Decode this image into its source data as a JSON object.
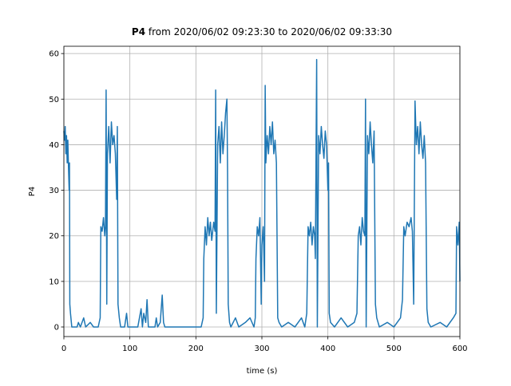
{
  "chart_data": {
    "type": "line",
    "title": {
      "bold": "P4",
      "text": "from 2020/06/02 09:23:30 to 2020/06/02 09:33:30"
    },
    "xlabel": "time (s)",
    "ylabel": "P4",
    "xlim": [
      0,
      600
    ],
    "ylim": [
      -2.1,
      61.6
    ],
    "xticks": [
      0,
      100,
      200,
      300,
      400,
      500,
      600
    ],
    "yticks": [
      0,
      10,
      20,
      30,
      40,
      50,
      60
    ],
    "grid": true,
    "x": [
      0,
      1,
      2,
      3,
      4,
      5,
      6,
      7,
      8,
      8.5,
      9,
      10,
      12,
      20,
      22,
      25,
      30,
      33,
      40,
      45,
      52,
      55,
      56,
      58,
      60,
      62,
      63,
      64,
      65,
      66,
      68,
      70,
      72,
      74,
      76,
      78,
      80,
      81,
      82,
      84,
      86,
      92,
      95,
      97,
      112,
      117,
      119,
      121,
      124,
      126,
      128,
      138,
      140,
      142,
      146,
      149,
      151,
      153,
      208,
      211,
      212,
      214,
      216,
      218,
      220,
      222,
      224,
      227,
      229,
      230,
      231,
      233,
      235,
      237,
      239,
      241,
      243,
      245,
      247,
      248,
      249,
      251,
      253,
      260,
      265,
      275,
      282,
      288,
      290,
      291,
      293,
      295,
      297,
      299,
      300,
      302,
      304,
      305,
      306,
      308,
      310,
      312,
      314,
      316,
      318,
      320,
      322,
      324,
      326,
      330,
      340,
      350,
      360,
      365,
      368,
      370,
      372,
      374,
      376,
      378,
      380,
      381,
      383,
      384,
      386,
      388,
      390,
      392,
      394,
      396,
      398,
      400,
      401,
      402,
      404,
      410,
      420,
      430,
      440,
      444,
      446,
      448,
      450,
      452,
      454,
      456,
      457,
      458,
      460,
      462,
      464,
      466,
      468,
      470,
      472,
      474,
      478,
      490,
      500,
      510,
      513,
      515,
      517,
      520,
      523,
      526,
      528,
      530,
      532,
      534,
      536,
      538,
      540,
      542,
      544,
      546,
      548,
      550,
      552,
      556,
      570,
      580,
      590,
      594,
      595,
      597,
      599,
      600
    ],
    "series": [
      {
        "name": "P4",
        "color": "#1f77b4",
        "values": [
          43,
          41,
          44,
          38,
          42,
          36,
          41,
          35,
          30,
          36,
          5,
          3,
          0,
          0,
          1,
          0,
          2,
          0,
          1,
          0,
          0,
          2,
          22,
          21,
          24,
          20,
          22,
          52,
          5,
          38,
          44,
          36,
          45,
          40,
          42,
          38,
          28,
          44,
          5,
          2,
          0,
          0,
          3,
          0,
          0,
          4,
          0,
          3,
          1,
          6,
          0,
          0,
          2,
          0,
          1,
          7,
          1,
          0,
          0,
          2,
          15,
          22,
          18,
          24,
          20,
          23,
          19,
          23,
          21,
          52,
          3,
          40,
          44,
          36,
          45,
          38,
          42,
          47,
          50,
          34,
          5,
          1,
          0,
          2,
          0,
          1,
          2,
          0,
          2,
          15,
          22,
          20,
          24,
          5,
          18,
          22,
          10,
          53,
          36,
          42,
          38,
          44,
          40,
          45,
          38,
          41,
          36,
          2,
          1,
          0,
          1,
          0,
          2,
          0,
          3,
          22,
          20,
          23,
          18,
          22,
          20,
          15,
          58.7,
          0,
          42,
          38,
          44,
          40,
          37,
          43,
          40,
          30,
          36,
          3,
          1,
          0,
          2,
          0,
          1,
          3,
          20,
          22,
          18,
          24,
          21,
          20,
          50,
          0,
          42,
          38,
          45,
          40,
          36,
          43,
          5,
          2,
          0,
          1,
          0,
          2,
          6,
          22,
          20,
          23,
          22,
          24,
          21,
          5,
          49.6,
          40,
          44,
          38,
          45,
          40,
          37,
          42,
          36,
          4,
          1,
          0,
          1,
          0,
          2,
          3,
          22,
          18,
          23,
          10
        ]
      }
    ]
  }
}
